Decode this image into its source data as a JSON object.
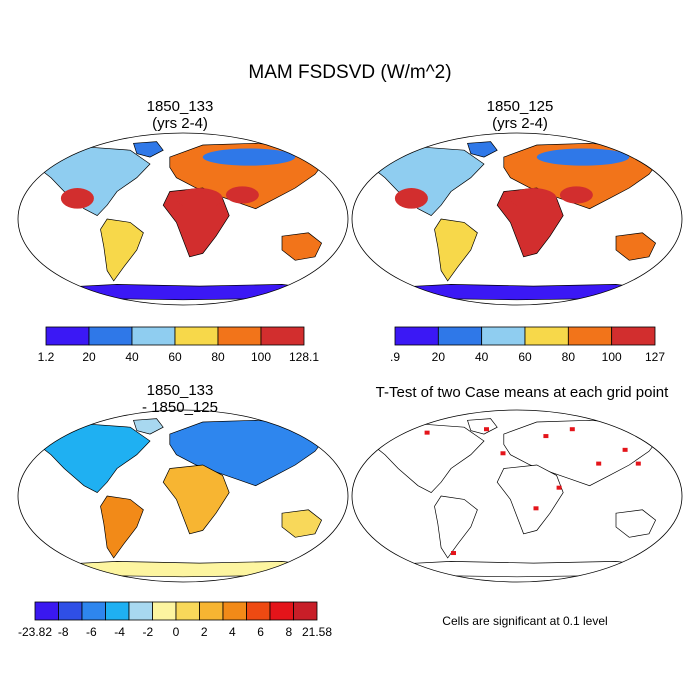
{
  "title": "MAM FSDSVD (W/m^2)",
  "panels": [
    {
      "id": "p1",
      "title_line1": "1850_133",
      "title_line2": "(yrs 2-4)"
    },
    {
      "id": "p2",
      "title_line1": "1850_125",
      "title_line2": "(yrs 2-4)"
    },
    {
      "id": "p3",
      "title_line1": "1850_133",
      "title_line2": "- 1850_125"
    },
    {
      "id": "p4",
      "title_line1": "T-Test of two Case means at each grid point",
      "title_line2": ""
    }
  ],
  "colorbars": [
    {
      "id": "cb1",
      "labels": [
        "1.2",
        "20",
        "40",
        "60",
        "80",
        "100",
        "128.1"
      ],
      "colors": [
        "#3b18f5",
        "#2f78e8",
        "#8fcdf0",
        "#f7d84a",
        "#f2741a",
        "#d22e2e"
      ]
    },
    {
      "id": "cb2",
      "labels": [
        ".9",
        "20",
        "40",
        "60",
        "80",
        "100",
        "127"
      ],
      "colors": [
        "#3b18f5",
        "#2f78e8",
        "#8fcdf0",
        "#f7d84a",
        "#f2741a",
        "#d22e2e"
      ]
    },
    {
      "id": "cb3",
      "labels": [
        "-23.82",
        "-8",
        "-6",
        "-4",
        "-2",
        "0",
        "2",
        "4",
        "6",
        "8",
        "21.58"
      ],
      "colors": [
        "#3a18f0",
        "#2f4fe6",
        "#2e86ee",
        "#1fb0f2",
        "#a8d8f0",
        "#fdf5a0",
        "#f8d85a",
        "#f7b532",
        "#f28a18",
        "#ee4a12",
        "#e4141a",
        "#c81e28"
      ]
    }
  ],
  "footnote": "Cells are significant at 0.1 level"
}
